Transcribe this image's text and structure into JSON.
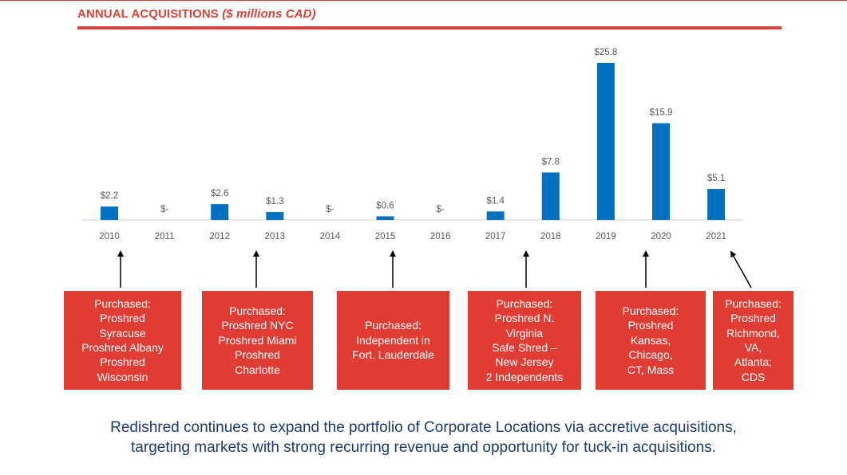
{
  "header": {
    "title_main": "ANNUAL ACQUISITIONS",
    "title_sub": "($ millions CAD)"
  },
  "colors": {
    "accent": "#d9423a",
    "bar": "#0070c0",
    "box": "#e03c34",
    "footer_text": "#1f3b6e"
  },
  "chart_data": {
    "type": "bar",
    "categories": [
      "2010",
      "2011",
      "2012",
      "2013",
      "2014",
      "2015",
      "2016",
      "2017",
      "2018",
      "2019",
      "2020",
      "2021"
    ],
    "values": [
      2.2,
      0,
      2.6,
      1.3,
      0,
      0.6,
      0,
      1.4,
      7.8,
      25.8,
      15.9,
      5.1
    ],
    "data_labels": [
      "$2.2",
      "$-",
      "$2.6",
      "$1.3",
      "$-",
      "$0.6",
      "$-",
      "$1.4",
      "$7.8",
      "$25.8",
      "$15.9",
      "$5.1"
    ],
    "ylim": [
      0,
      25.8
    ],
    "grid": false,
    "legend": "none"
  },
  "acquisition_boxes": [
    {
      "lines": [
        "Purchased:",
        "Proshred",
        "Syracuse",
        "Proshred Albany",
        "Proshred",
        "Wisconsin"
      ]
    },
    {
      "lines": [
        "Purchased:",
        "Proshred NYC",
        "Proshred Miami",
        "Proshred",
        "Charlotte"
      ]
    },
    {
      "lines": [
        "Purchased:",
        "Independent in",
        "Fort. Lauderdale"
      ]
    },
    {
      "lines": [
        "Purchased:",
        "Proshred N.",
        "Virginia",
        "Safe Shred –",
        "New Jersey",
        "2 Independents"
      ]
    },
    {
      "lines": [
        "Purchased:",
        "Proshred",
        "Kansas,",
        "Chicago,",
        "CT, Mass"
      ]
    },
    {
      "lines": [
        "Purchased:",
        "Proshred",
        "Richmond,",
        "VA,",
        "Atlanta;",
        "CDS"
      ]
    }
  ],
  "footer": {
    "line1": "Redishred continues to expand the portfolio of Corporate Locations via accretive acquisitions,",
    "line2": "targeting markets with strong recurring revenue and opportunity for tuck-in acquisitions."
  }
}
